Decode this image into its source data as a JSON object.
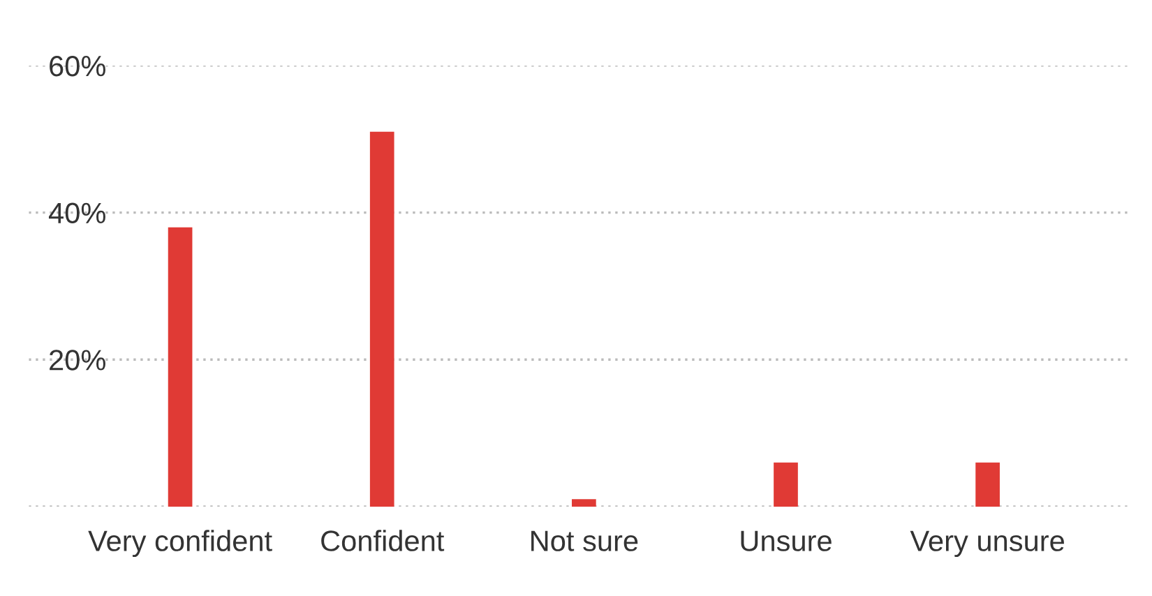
{
  "chart_data": {
    "type": "bar",
    "categories": [
      "Very confident",
      "Confident",
      "Not sure",
      "Unsure",
      "Very unsure"
    ],
    "values": [
      38,
      51,
      1,
      6,
      6
    ],
    "color": "#e03a35",
    "ylim": [
      0,
      60
    ],
    "yticks": [
      {
        "value": 0,
        "label": null
      },
      {
        "value": 20,
        "label": "20%"
      },
      {
        "value": 40,
        "label": "40%"
      },
      {
        "value": 60,
        "label": "60%"
      }
    ],
    "grid": "y"
  }
}
